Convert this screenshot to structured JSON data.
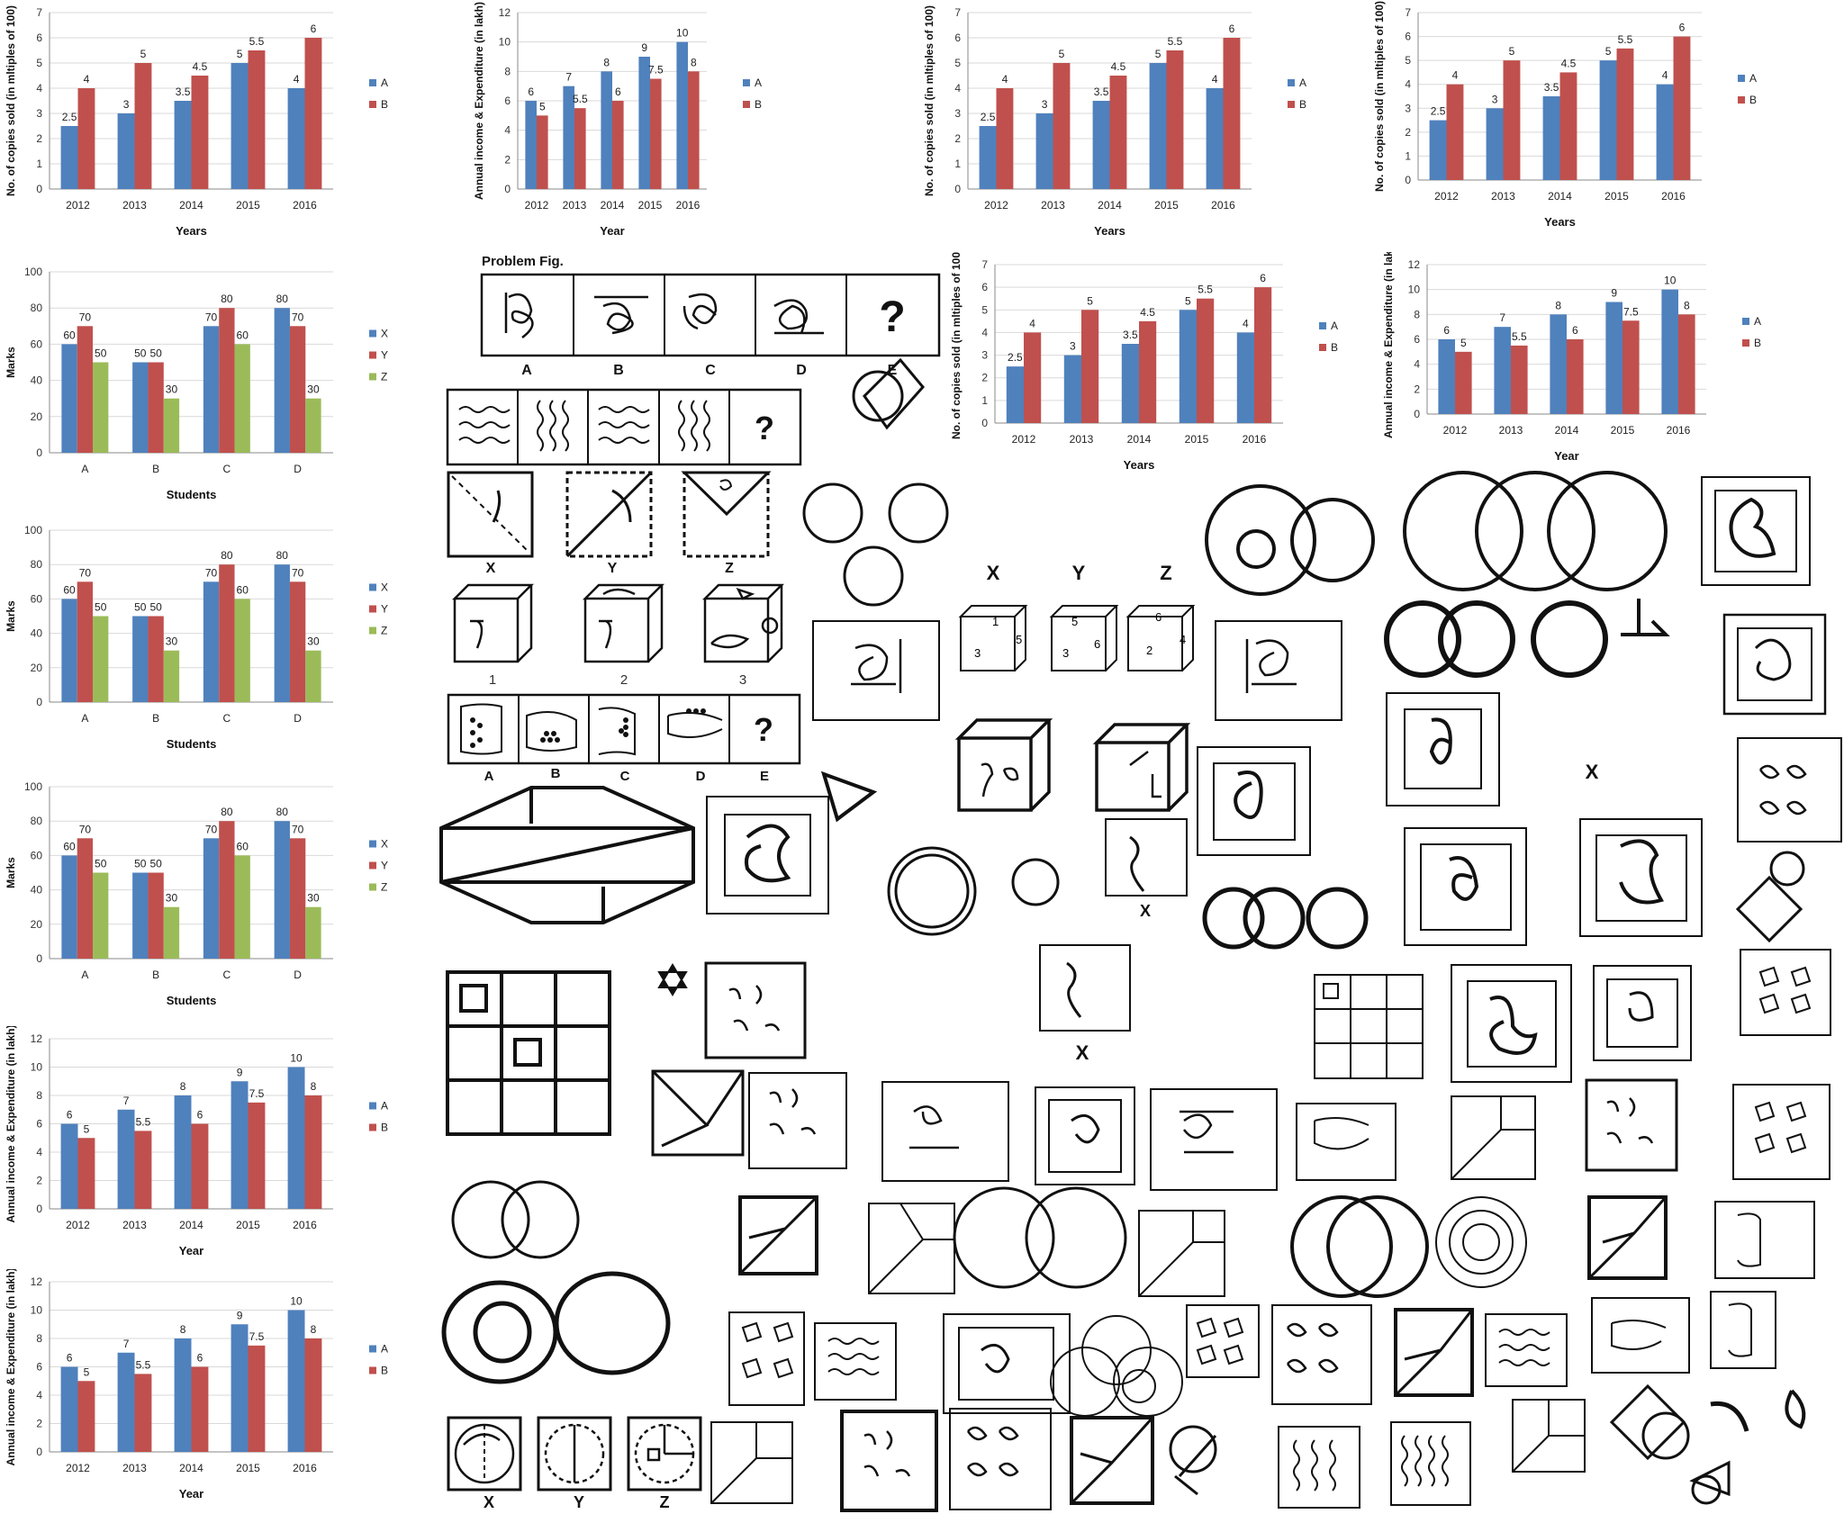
{
  "colors": {
    "A": "#4f81bd",
    "B": "#c0504d",
    "X": "#4f81bd",
    "Y": "#c0504d",
    "Z": "#9bbb59"
  },
  "chart_data": [
    {
      "type": "bar",
      "id": "copies",
      "categories": [
        "2012",
        "2013",
        "2014",
        "2015",
        "2016"
      ],
      "series": [
        {
          "name": "A",
          "values": [
            2.5,
            3,
            3.5,
            5,
            4
          ]
        },
        {
          "name": "B",
          "values": [
            4,
            5,
            4.5,
            5.5,
            6
          ]
        }
      ],
      "value_labels": [
        [
          "2.5",
          "3",
          "3.5",
          "5",
          "4"
        ],
        [
          "4",
          "5",
          "4.5",
          "5.5",
          "6"
        ]
      ],
      "xlabel": "Years",
      "ylabel": "No. of copies sold (in mltiples of 100)",
      "ylim": [
        0,
        7
      ],
      "yticks": [
        "0",
        "1",
        "2",
        "3",
        "4",
        "5",
        "6",
        "7"
      ],
      "grid": true,
      "legend": "right"
    },
    {
      "type": "bar",
      "id": "income",
      "categories": [
        "2012",
        "2013",
        "2014",
        "2015",
        "2016"
      ],
      "series": [
        {
          "name": "A",
          "values": [
            6,
            7,
            8,
            9,
            10
          ]
        },
        {
          "name": "B",
          "values": [
            5,
            5.5,
            6,
            7.5,
            8
          ]
        }
      ],
      "value_labels": [
        [
          "6",
          "7",
          "8",
          "9",
          "10"
        ],
        [
          "5",
          "5.5",
          "6",
          "7.5",
          "8"
        ]
      ],
      "xlabel": "Year",
      "ylabel": "Annual income & Expenditure (in lakh)",
      "ylim": [
        0,
        12
      ],
      "yticks": [
        "0",
        "2",
        "4",
        "6",
        "8",
        "10",
        "12"
      ],
      "grid": true,
      "legend": "right"
    },
    {
      "type": "bar",
      "id": "marks",
      "categories": [
        "A",
        "B",
        "C",
        "D"
      ],
      "series": [
        {
          "name": "X",
          "values": [
            60,
            50,
            70,
            80
          ]
        },
        {
          "name": "Y",
          "values": [
            70,
            50,
            80,
            70
          ]
        },
        {
          "name": "Z",
          "values": [
            50,
            30,
            60,
            30
          ]
        }
      ],
      "value_labels": [
        [
          "60",
          "50",
          "70",
          "80"
        ],
        [
          "70",
          "50",
          "80",
          "70"
        ],
        [
          "50",
          "30",
          "60",
          "30"
        ]
      ],
      "xlabel": "Students",
      "ylabel": "Marks",
      "ylim": [
        0,
        100
      ],
      "yticks": [
        "0",
        "20",
        "40",
        "60",
        "80",
        "100"
      ],
      "grid": true,
      "legend": "right"
    }
  ],
  "figures": {
    "problem_title": "Problem Fig.",
    "problem_letters": [
      "A",
      "B",
      "C",
      "D",
      "E"
    ],
    "question_mark": "?",
    "fold_letters": [
      "X",
      "Y",
      "Z"
    ],
    "cube_numbers": [
      "1",
      "2",
      "3"
    ],
    "dice": [
      [
        "1",
        "3",
        "5"
      ],
      [
        "5",
        "3",
        "6"
      ],
      [
        "6",
        "2",
        "4"
      ]
    ],
    "x_label": "X"
  }
}
